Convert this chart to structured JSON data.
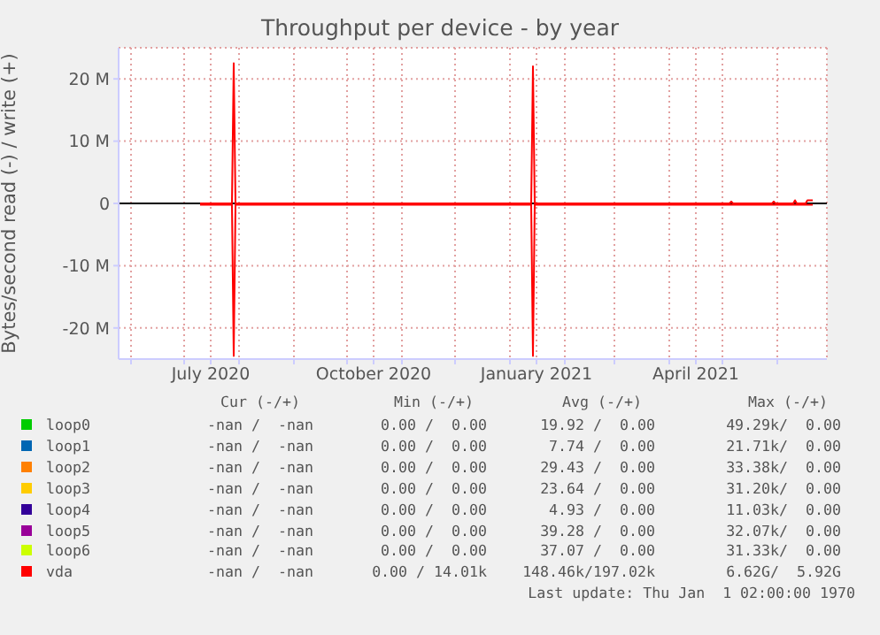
{
  "chart_data": {
    "type": "line",
    "title": "Throughput per device - by year",
    "ylabel": "Bytes/second read (-) / write (+)",
    "xlim": [
      "2020-05-25",
      "2021-06-29"
    ],
    "xticks": [
      {
        "value": "2020-06-01",
        "label": null
      },
      {
        "value": "2020-07-01",
        "label": null
      },
      {
        "value": "2020-07-16",
        "label": "July 2020"
      },
      {
        "value": "2020-08-01",
        "label": null
      },
      {
        "value": "2020-09-01",
        "label": null
      },
      {
        "value": "2020-10-01",
        "label": null
      },
      {
        "value": "2020-10-16",
        "label": "October 2020"
      },
      {
        "value": "2020-11-01",
        "label": null
      },
      {
        "value": "2020-12-01",
        "label": null
      },
      {
        "value": "2021-01-01",
        "label": null
      },
      {
        "value": "2021-01-16",
        "label": "January 2021"
      },
      {
        "value": "2021-02-01",
        "label": null
      },
      {
        "value": "2021-03-01",
        "label": null
      },
      {
        "value": "2021-04-01",
        "label": null
      },
      {
        "value": "2021-04-16",
        "label": "April 2021"
      },
      {
        "value": "2021-05-01",
        "label": null
      },
      {
        "value": "2021-06-01",
        "label": null
      }
    ],
    "ylim": [
      -25000000,
      25000000
    ],
    "yticks": [
      {
        "value": -20000000,
        "label": "-20 M"
      },
      {
        "value": -10000000,
        "label": "-10 M"
      },
      0,
      {
        "value": 10000000,
        "label": "10 M"
      },
      {
        "value": 20000000,
        "label": "20 M"
      }
    ],
    "grid": true,
    "legend": "bottom",
    "marker": "none",
    "series": [
      {
        "name": "loop0",
        "color": "#00cc00",
        "values": [
          null
        ]
      },
      {
        "name": "loop1",
        "color": "#0066b3",
        "values": [
          null
        ]
      },
      {
        "name": "loop2",
        "color": "#ff8000",
        "values": [
          null
        ]
      },
      {
        "name": "loop3",
        "color": "#ffcc00",
        "values": [
          null
        ]
      },
      {
        "name": "loop4",
        "color": "#330099",
        "values": [
          null
        ]
      },
      {
        "name": "loop5",
        "color": "#990099",
        "values": [
          null
        ]
      },
      {
        "name": "loop6",
        "color": "#ccff00",
        "values": [
          null
        ]
      },
      {
        "name": "vda",
        "color": "#ff0000",
        "x": [
          "2020-07-10",
          "2020-07-28",
          "2020-07-29",
          "2020-07-30",
          "2021-01-13",
          "2021-01-14",
          "2021-01-15",
          "2021-05-05",
          "2021-05-06",
          "2021-05-07",
          "2021-05-29",
          "2021-05-30",
          "2021-05-31",
          "2021-06-10",
          "2021-06-11",
          "2021-06-12",
          "2021-06-17",
          "2021-06-18",
          "2021-06-21"
        ],
        "values": [
          0,
          0,
          22500000,
          0,
          0,
          22000000,
          0,
          0,
          300000,
          0,
          0,
          300000,
          0,
          0,
          500000,
          0,
          0,
          500000,
          500000
        ]
      },
      {
        "color": "#ff0000",
        "x": [
          "2020-07-10",
          "2020-07-28",
          "2020-07-29",
          "2020-07-30",
          "2021-01-13",
          "2021-01-14",
          "2021-01-15",
          "2021-06-21"
        ],
        "values": [
          -200000,
          -200000,
          -24500000,
          -200000,
          -200000,
          -24500000,
          -200000,
          -200000
        ]
      }
    ],
    "annotations": [
      "Cur (-/+)",
      "Min (-/+)",
      "Avg (-/+)",
      "Max (-/+)",
      "-nan /  -nan",
      "0.00 /  0.00",
      "19.92 /  0.00",
      "49.29k/  0.00",
      "-nan /  -nan",
      "0.00 /  0.00",
      "7.74 /  0.00",
      "21.71k/  0.00",
      "-nan /  -nan",
      "0.00 /  0.00",
      "29.43 /  0.00",
      "33.38k/  0.00",
      "-nan /  -nan",
      "0.00 /  0.00",
      "23.64 /  0.00",
      "31.20k/  0.00",
      "-nan /  -nan",
      "0.00 /  0.00",
      "4.93 /  0.00",
      "11.03k/  0.00",
      "-nan /  -nan",
      "0.00 /  0.00",
      "39.28 /  0.00",
      "32.07k/  0.00",
      "-nan /  -nan",
      "0.00 /  0.00",
      "37.07 /  0.00",
      "31.33k/  0.00",
      "-nan /  -nan",
      "0.00 / 14.01k",
      "148.46k/197.02k",
      "6.62G/  5.92G",
      "Last update: Thu Jan  1 02:00:00 1970"
    ]
  }
}
